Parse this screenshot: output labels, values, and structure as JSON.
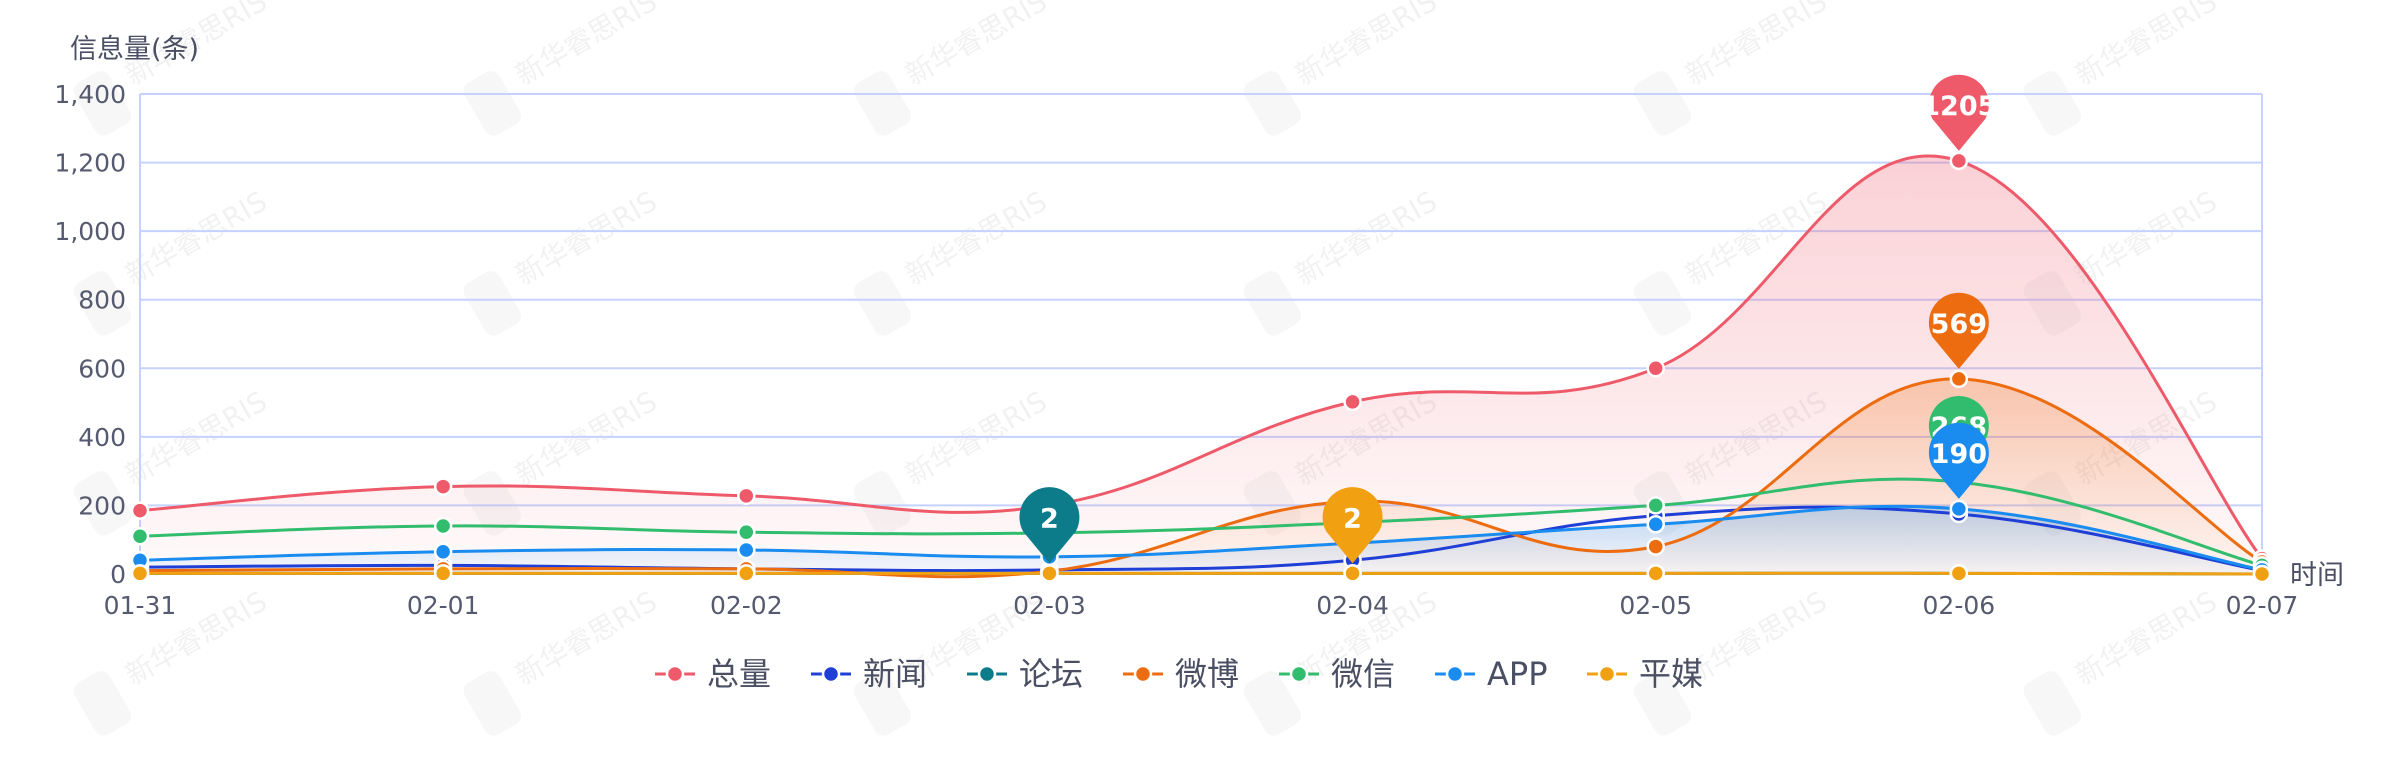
{
  "chart_data": {
    "type": "line",
    "title": "",
    "ylabel": "信息量(条)",
    "xlabel": "时间",
    "ylim": [
      0,
      1400
    ],
    "yticks": [
      0,
      200,
      400,
      600,
      800,
      1000,
      1200,
      1400
    ],
    "ytick_labels": [
      "0",
      "200",
      "400",
      "600",
      "800",
      "1,000",
      "1,200",
      "1,400"
    ],
    "categories": [
      "01-31",
      "02-01",
      "02-02",
      "02-03",
      "02-04",
      "02-05",
      "02-06",
      "02-07"
    ],
    "grid": true,
    "legend_position": "bottom-center",
    "series": [
      {
        "name": "总量",
        "color": "#ee5a6a",
        "values": [
          185,
          255,
          228,
          200,
          502,
          600,
          1205,
          45
        ],
        "area": true,
        "max_label": "1205",
        "max_index": 6
      },
      {
        "name": "新闻",
        "color": "#1f3fd6",
        "values": [
          20,
          25,
          15,
          12,
          40,
          170,
          175,
          10
        ],
        "area": false
      },
      {
        "name": "论坛",
        "color": "#0d7c8a",
        "values": [
          2,
          2,
          2,
          2,
          2,
          2,
          2,
          0
        ],
        "area": false,
        "max_label": "2",
        "max_index": 3
      },
      {
        "name": "微博",
        "color": "#ee6c10",
        "values": [
          10,
          15,
          15,
          8,
          212,
          80,
          569,
          35
        ],
        "area": true,
        "max_label": "569",
        "max_index": 6
      },
      {
        "name": "微信",
        "color": "#32bd6e",
        "values": [
          110,
          140,
          122,
          120,
          150,
          200,
          268,
          25
        ],
        "area": false,
        "max_label": "268",
        "max_index": 6
      },
      {
        "name": "APP",
        "color": "#1a8cf0",
        "values": [
          40,
          65,
          70,
          50,
          90,
          145,
          190,
          12
        ],
        "area": true,
        "max_label": "190",
        "max_index": 6
      },
      {
        "name": "平媒",
        "color": "#f0a010",
        "values": [
          2,
          2,
          2,
          2,
          2,
          2,
          2,
          0
        ],
        "area": false,
        "max_label": "2",
        "max_index": 4
      }
    ]
  },
  "watermark": {
    "text": "新华睿思RIS"
  }
}
